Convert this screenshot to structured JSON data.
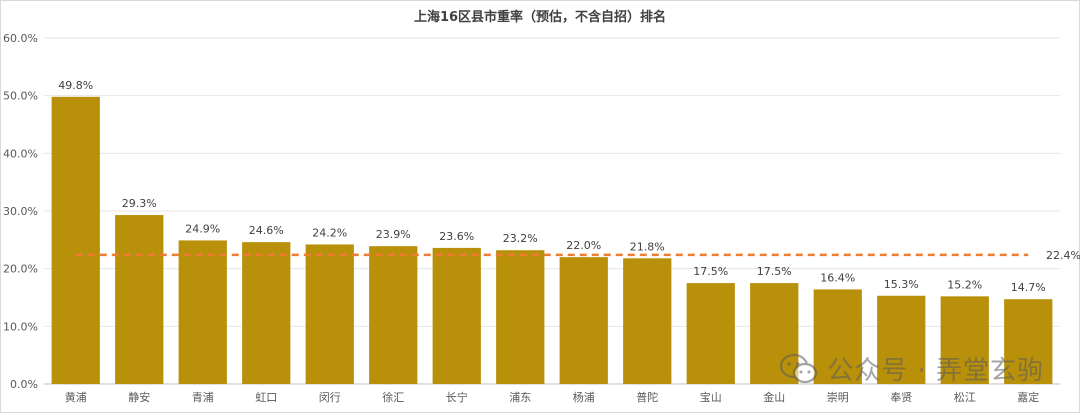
{
  "chart_data": {
    "type": "bar",
    "title": "上海16区县市重率（预估，不含自招）排名",
    "categories": [
      "黄浦",
      "静安",
      "青浦",
      "虹口",
      "闵行",
      "徐汇",
      "长宁",
      "浦东",
      "杨浦",
      "普陀",
      "宝山",
      "金山",
      "崇明",
      "奉贤",
      "松江",
      "嘉定"
    ],
    "values": [
      49.8,
      29.3,
      24.9,
      24.6,
      24.2,
      23.9,
      23.6,
      23.2,
      22.0,
      21.8,
      17.5,
      17.5,
      16.4,
      15.3,
      15.2,
      14.7
    ],
    "value_format": "percent_1dp",
    "yticks": [
      "0.0%",
      "10.0%",
      "20.0%",
      "30.0%",
      "40.0%",
      "50.0%",
      "60.0%"
    ],
    "ylim": [
      0,
      60
    ],
    "reference_line": {
      "value": 22.4,
      "label": "22.4%",
      "style": "dashed",
      "color": "#ed7d31"
    },
    "bar_color": "#b8900a",
    "grid": true,
    "legend": "none"
  },
  "watermark": {
    "text": "公众号 · 弄堂玄驹",
    "icon": "wechat-icon"
  }
}
